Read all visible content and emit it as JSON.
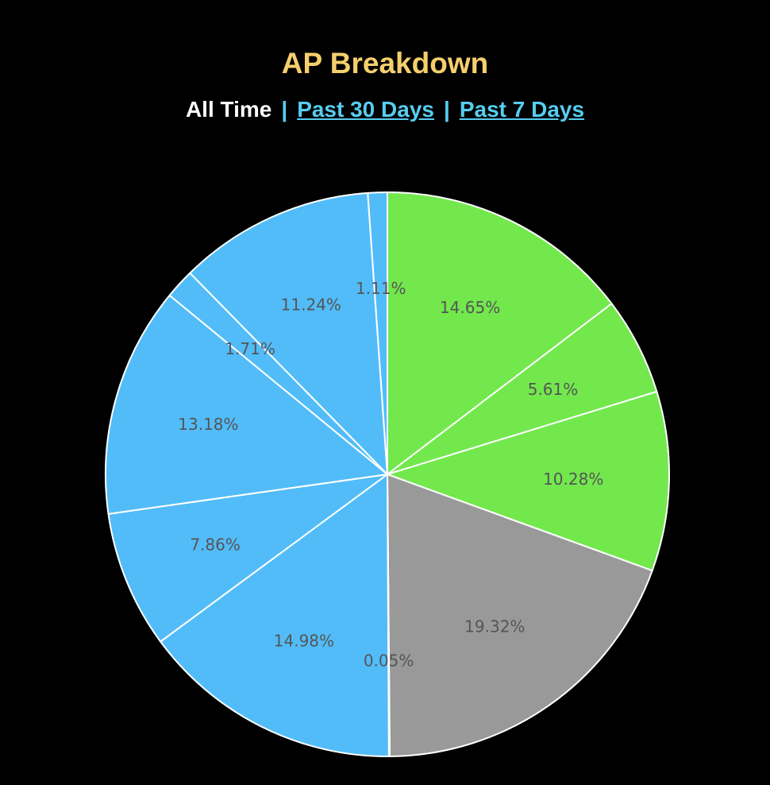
{
  "header": {
    "title": "AP Breakdown",
    "tabs": [
      {
        "label": "All Time",
        "active": true
      },
      {
        "label": "Past 30 Days",
        "active": false
      },
      {
        "label": "Past 7 Days",
        "active": false
      }
    ],
    "separator": "|"
  },
  "colors": {
    "title": "#f5cf6c",
    "link": "#57cdf0",
    "background": "#000000",
    "slice_stroke": "#ffffff",
    "label": "#555555"
  },
  "chart_data": {
    "type": "pie",
    "title": "AP Breakdown",
    "start_angle_deg": 0,
    "direction": "clockwise",
    "slices": [
      {
        "value": 14.65,
        "label": "14.65%",
        "color": "#72e84c"
      },
      {
        "value": 5.61,
        "label": "5.61%",
        "color": "#72e84c"
      },
      {
        "value": 10.28,
        "label": "10.28%",
        "color": "#72e84c"
      },
      {
        "value": 19.32,
        "label": "19.32%",
        "color": "#999999"
      },
      {
        "value": 0.05,
        "label": "0.05%",
        "color": "#999999"
      },
      {
        "value": 14.98,
        "label": "14.98%",
        "color": "#52bcf9"
      },
      {
        "value": 7.86,
        "label": "7.86%",
        "color": "#52bcf9"
      },
      {
        "value": 13.18,
        "label": "13.18%",
        "color": "#52bcf9"
      },
      {
        "value": 1.71,
        "label": "1.71%",
        "color": "#52bcf9"
      },
      {
        "value": 11.24,
        "label": "11.24%",
        "color": "#52bcf9"
      },
      {
        "value": 1.11,
        "label": "1.11%",
        "color": "#52bcf9"
      }
    ]
  }
}
